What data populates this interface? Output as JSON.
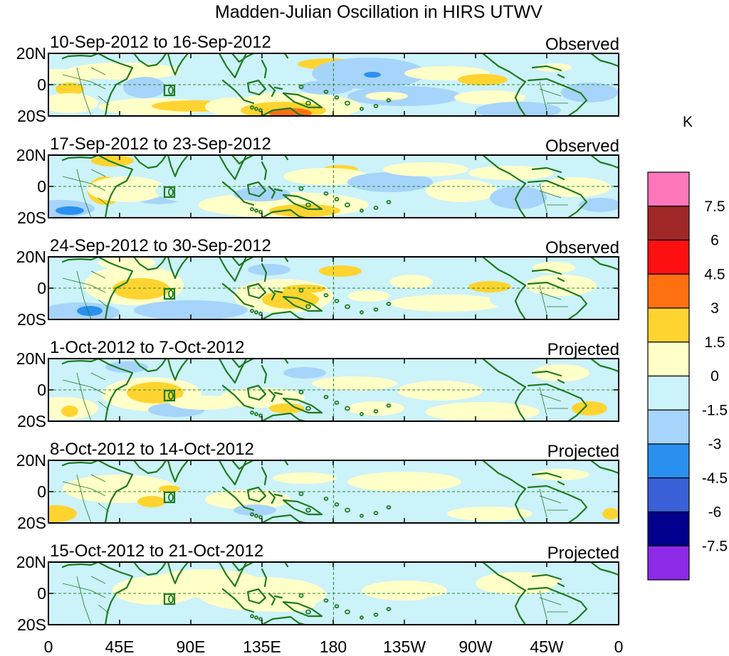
{
  "title": "Madden-Julian Oscillation in HIRS UTWV",
  "units": "K",
  "lat_labels": [
    "20N",
    "0",
    "20S"
  ],
  "lon_labels": [
    "0",
    "45E",
    "90E",
    "135E",
    "180",
    "135W",
    "90W",
    "45W",
    "0"
  ],
  "panels": [
    {
      "date_range": "10-Sep-2012 to 16-Sep-2012",
      "status": "Observed"
    },
    {
      "date_range": "17-Sep-2012 to 23-Sep-2012",
      "status": "Observed"
    },
    {
      "date_range": "24-Sep-2012 to 30-Sep-2012",
      "status": "Observed"
    },
    {
      "date_range": "1-Oct-2012 to 7-Oct-2012",
      "status": "Projected"
    },
    {
      "date_range": "8-Oct-2012 to 14-Oct-2012",
      "status": "Projected"
    },
    {
      "date_range": "15-Oct-2012 to 21-Oct-2012",
      "status": "Projected"
    }
  ],
  "colorbar": {
    "colors": [
      "#ff77bb",
      "#a02828",
      "#ff1010",
      "#ff7010",
      "#ffd430",
      "#ffffc8",
      "#ccf2fa",
      "#a6d4fa",
      "#2a90f0",
      "#3a60d8",
      "#00008c",
      "#8c2ae8"
    ],
    "labels": [
      "7.5",
      "6",
      "4.5",
      "3",
      "1.5",
      "0",
      "-1.5",
      "-3",
      "-4.5",
      "-6",
      "-7.5"
    ]
  }
}
